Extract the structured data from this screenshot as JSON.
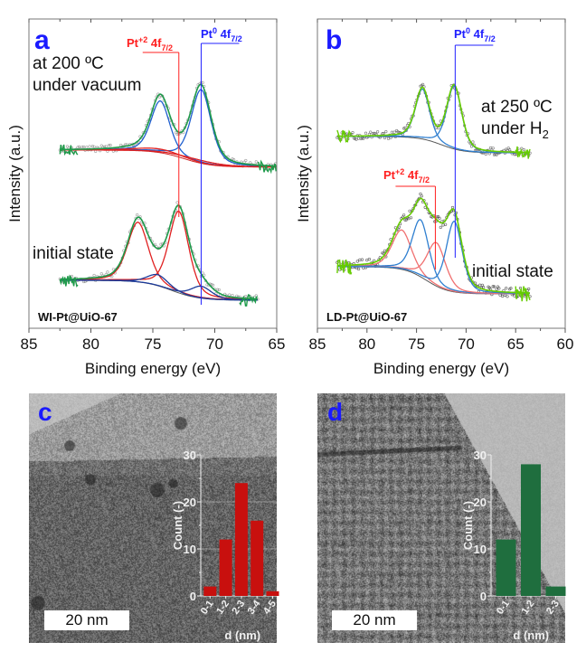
{
  "chart_data": [
    {
      "id": "a",
      "type": "line",
      "panel_label": "a",
      "sample_label": "WI-Pt@UiO-67",
      "xlabel": "Binding energy (eV)",
      "ylabel": "Intensity (a.u.)",
      "xlim": [
        85,
        65
      ],
      "xticks": [
        85,
        80,
        75,
        70,
        65
      ],
      "grid": false,
      "reference_lines": [
        {
          "name": "Pt+2 4f7/2",
          "label_main": "Pt",
          "label_sup": "+2",
          "label_orb": " 4f",
          "label_sub": "7/2",
          "x": 72.9,
          "color": "#ff2020"
        },
        {
          "name": "Pt0 4f7/2",
          "label_main": "Pt",
          "label_sup": "0",
          "label_orb": " 4f",
          "label_sub": "7/2",
          "x": 71.1,
          "color": "#2020ff"
        }
      ],
      "spectra": [
        {
          "name": "at 200 °C under vacuum",
          "label_line1": "at 200 ºC",
          "label_line2": "under vacuum",
          "x_range": [
            82.5,
            65
          ],
          "baseline": {
            "start": 1.0,
            "end": 0.15,
            "mid": 72.5
          },
          "components": [
            {
              "name": "Pt0 4f5/2",
              "center": 74.4,
              "height": 2.6,
              "width": 0.9,
              "color": "#1f5fcf"
            },
            {
              "name": "Pt0 4f7/2",
              "center": 71.1,
              "height": 3.7,
              "width": 0.95,
              "color": "#1f5fcf"
            },
            {
              "name": "Pt+2 minor",
              "center": 74.5,
              "height": 0.18,
              "width": 2.2,
              "color": "#e02020"
            },
            {
              "name": "Pt+2 minor 2",
              "center": 71.5,
              "height": 0.15,
              "width": 2.2,
              "color": "#e02020"
            }
          ],
          "envelope_color": "#1e9a4a",
          "data_color": "#888888",
          "noise_color": "#1e9a4a"
        },
        {
          "name": "initial state",
          "label_line1": "initial state",
          "x_range": [
            82.5,
            66.5
          ],
          "baseline": {
            "start": 1.0,
            "end": 0.0,
            "mid": 73.5
          },
          "components": [
            {
              "name": "Pt+2 4f5/2",
              "center": 76.2,
              "height": 3.0,
              "width": 1.0,
              "color": "#e02020"
            },
            {
              "name": "Pt+2 4f7/2",
              "center": 72.9,
              "height": 4.1,
              "width": 0.95,
              "color": "#e02020"
            },
            {
              "name": "Pt0 4f5/2",
              "center": 74.6,
              "height": 0.55,
              "width": 1.0,
              "color": "#1c3a9a"
            },
            {
              "name": "Pt0 4f7/2",
              "center": 71.1,
              "height": 0.6,
              "width": 1.0,
              "color": "#1c3a9a"
            }
          ],
          "envelope_color": "#1e9a4a",
          "data_color": "#888888",
          "noise_color": "#1e9a4a"
        }
      ]
    },
    {
      "id": "b",
      "type": "line",
      "panel_label": "b",
      "sample_label": "LD-Pt@UiO-67",
      "xlabel": "Binding energy (eV)",
      "ylabel": "Intensity (a.u.)",
      "xlim": [
        85,
        60
      ],
      "xticks": [
        85,
        80,
        75,
        70,
        65,
        60
      ],
      "grid": false,
      "reference_lines": [
        {
          "name": "Pt0 4f7/2",
          "label_main": "Pt",
          "label_sup": "0",
          "label_orb": " 4f",
          "label_sub": "7/2",
          "x": 71.1,
          "color": "#2020ff"
        },
        {
          "name": "Pt+2 4f7/2",
          "label_main": "Pt",
          "label_sup": "+2",
          "label_orb": " 4f",
          "label_sub": "7/2",
          "x": 73.1,
          "color": "#ff2020"
        }
      ],
      "spectra": [
        {
          "name": "at 250 °C under H2",
          "label_line1": "at 250 ºC",
          "label_line2": "under H",
          "label_line2_sub": "2",
          "x_range": [
            83.0,
            63.5
          ],
          "baseline": {
            "start": 1.0,
            "end": 0.25,
            "mid": 72.5
          },
          "components": [
            {
              "name": "Pt0 4f5/2",
              "center": 74.4,
              "height": 2.3,
              "width": 0.85,
              "color": "#2f7fd0"
            },
            {
              "name": "Pt0 4f7/2",
              "center": 71.2,
              "height": 2.9,
              "width": 0.9,
              "color": "#2f7fd0"
            }
          ],
          "envelope_color": "#66cc00",
          "data_color": "#555555",
          "noise_color": "#66cc00"
        },
        {
          "name": "initial state",
          "label_line1": "initial state",
          "x_range": [
            83.0,
            63.5
          ],
          "baseline": {
            "start": 1.0,
            "end": 0.0,
            "mid": 74.0
          },
          "components": [
            {
              "name": "Pt+2 4f5/2",
              "center": 76.5,
              "height": 1.45,
              "width": 1.15,
              "color": "#f07070"
            },
            {
              "name": "Pt0 4f5/2",
              "center": 74.6,
              "height": 2.1,
              "width": 1.0,
              "color": "#2f7fd0"
            },
            {
              "name": "Pt+2 4f7/2",
              "center": 73.0,
              "height": 1.6,
              "width": 1.1,
              "color": "#f07070"
            },
            {
              "name": "Pt0 4f7/2",
              "center": 71.2,
              "height": 2.6,
              "width": 0.95,
              "color": "#2f7fd0"
            }
          ],
          "envelope_color": "#66cc00",
          "data_color": "#333333",
          "noise_color": "#66cc00"
        }
      ]
    },
    {
      "id": "c",
      "type": "bar",
      "panel_label": "c",
      "title": "",
      "xlabel": "d (nm)",
      "ylabel": "Count (-)",
      "categories": [
        "0-1",
        "1-2",
        "2-3",
        "3-4",
        "4-5"
      ],
      "values": [
        2,
        12,
        24,
        16,
        1
      ],
      "ylim": [
        0,
        30
      ],
      "yticks": [
        0,
        10,
        20,
        30
      ],
      "grid": true,
      "bar_color": "#c8100e",
      "scale_bar": "20 nm"
    },
    {
      "id": "d",
      "type": "bar",
      "panel_label": "d",
      "title": "",
      "xlabel": "d (nm)",
      "ylabel": "Count (-)",
      "categories": [
        "0-1",
        "1-2",
        "2-3"
      ],
      "values": [
        12,
        28,
        2
      ],
      "ylim": [
        0,
        30
      ],
      "yticks": [
        0,
        10,
        20,
        30
      ],
      "grid": true,
      "bar_color": "#1f6e3e",
      "scale_bar": "20 nm"
    }
  ]
}
